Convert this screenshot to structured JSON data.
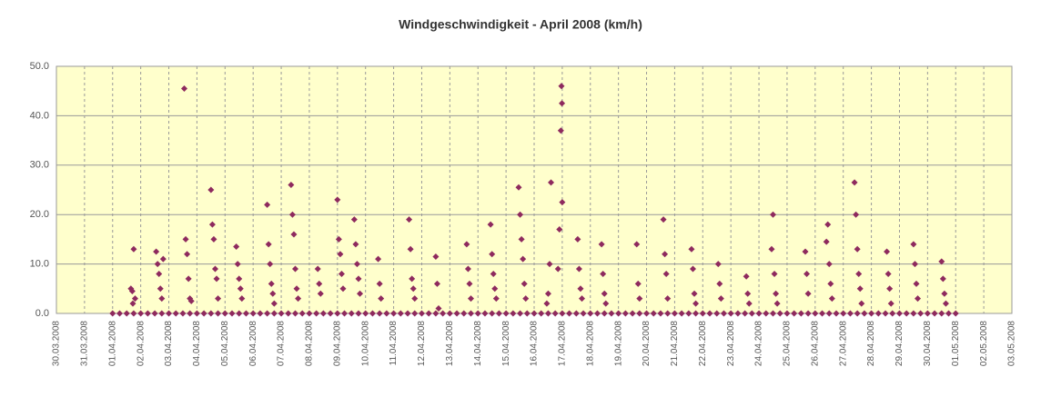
{
  "chart_data": {
    "type": "scatter",
    "title": "Windgeschwindigkeit - April 2008 (km/h)",
    "color": "#8e2a5e",
    "background": "#ffffcc",
    "grid": true,
    "xlim": [
      0,
      34
    ],
    "xticks": [
      {
        "value": 0,
        "label": "30.03.2008"
      },
      {
        "value": 1,
        "label": "31.03.2008"
      },
      {
        "value": 2,
        "label": "01.04.2008"
      },
      {
        "value": 3,
        "label": "02.04.2008"
      },
      {
        "value": 4,
        "label": "03.04.2008"
      },
      {
        "value": 5,
        "label": "04.04.2008"
      },
      {
        "value": 6,
        "label": "05.04.2008"
      },
      {
        "value": 7,
        "label": "06.04.2008"
      },
      {
        "value": 8,
        "label": "07.04.2008"
      },
      {
        "value": 9,
        "label": "08.04.2008"
      },
      {
        "value": 10,
        "label": "09.04.2008"
      },
      {
        "value": 11,
        "label": "10.04.2008"
      },
      {
        "value": 12,
        "label": "11.04.2008"
      },
      {
        "value": 13,
        "label": "12.04.2008"
      },
      {
        "value": 14,
        "label": "13.04.2008"
      },
      {
        "value": 15,
        "label": "14.04.2008"
      },
      {
        "value": 16,
        "label": "15.04.2008"
      },
      {
        "value": 17,
        "label": "16.04.2008"
      },
      {
        "value": 18,
        "label": "17.04.2008"
      },
      {
        "value": 19,
        "label": "18.04.2008"
      },
      {
        "value": 20,
        "label": "19.04.2008"
      },
      {
        "value": 21,
        "label": "20.04.2008"
      },
      {
        "value": 22,
        "label": "21.04.2008"
      },
      {
        "value": 23,
        "label": "22.04.2008"
      },
      {
        "value": 24,
        "label": "23.04.2008"
      },
      {
        "value": 25,
        "label": "24.04.2008"
      },
      {
        "value": 26,
        "label": "25.04.2008"
      },
      {
        "value": 27,
        "label": "26.04.2008"
      },
      {
        "value": 28,
        "label": "27.04.2008"
      },
      {
        "value": 29,
        "label": "28.04.2008"
      },
      {
        "value": 30,
        "label": "29.04.2008"
      },
      {
        "value": 31,
        "label": "30.04.2008"
      },
      {
        "value": 32,
        "label": "01.05.2008"
      },
      {
        "value": 33,
        "label": "02.05.2008"
      },
      {
        "value": 34,
        "label": "03.05.2008"
      }
    ],
    "ylim": [
      0,
      50
    ],
    "yticks": [
      {
        "value": 0,
        "label": "0.0"
      },
      {
        "value": 10,
        "label": "10.0"
      },
      {
        "value": 20,
        "label": "20.0"
      },
      {
        "value": 30,
        "label": "30.0"
      },
      {
        "value": 40,
        "label": "40.0"
      },
      {
        "value": 50,
        "label": "50.0"
      }
    ],
    "x": [
      2.65,
      2.7,
      2.75,
      2.8,
      2.72,
      3.55,
      3.6,
      3.65,
      3.7,
      3.75,
      3.8,
      4.55,
      4.6,
      4.65,
      4.7,
      4.75,
      4.8,
      5.5,
      5.55,
      5.6,
      5.65,
      5.7,
      5.75,
      6.4,
      6.45,
      6.5,
      6.55,
      6.6,
      7.5,
      7.55,
      7.6,
      7.65,
      7.7,
      7.75,
      8.35,
      8.4,
      8.45,
      8.5,
      8.55,
      8.6,
      9.3,
      9.35,
      9.4,
      10.0,
      10.05,
      10.1,
      10.15,
      10.2,
      10.6,
      10.65,
      10.7,
      10.75,
      10.8,
      11.45,
      11.5,
      11.55,
      12.55,
      12.6,
      12.65,
      12.7,
      12.75,
      13.5,
      13.55,
      13.6,
      14.6,
      14.65,
      14.7,
      14.75,
      15.45,
      15.5,
      15.55,
      15.6,
      15.65,
      16.45,
      16.5,
      16.55,
      16.6,
      16.65,
      16.7,
      17.6,
      17.55,
      17.5,
      17.45,
      17.97,
      17.99,
      17.95,
      18.0,
      17.9,
      17.85,
      18.55,
      18.6,
      18.65,
      18.7,
      19.4,
      19.45,
      19.5,
      19.55,
      20.65,
      20.7,
      20.75,
      21.6,
      21.65,
      21.7,
      21.75,
      22.6,
      22.65,
      22.7,
      22.75,
      23.55,
      23.6,
      23.65,
      24.55,
      24.6,
      24.65,
      25.5,
      25.45,
      25.55,
      25.6,
      25.65,
      26.65,
      26.7,
      26.75,
      27.45,
      27.4,
      27.5,
      27.55,
      27.6,
      28.4,
      28.45,
      28.5,
      28.55,
      28.6,
      28.65,
      29.55,
      29.6,
      29.65,
      29.7,
      30.5,
      30.55,
      30.6,
      30.65,
      31.5,
      31.55,
      31.6,
      31.65,
      2,
      2.25,
      2.5,
      2.75,
      3,
      3.25,
      3.5,
      3.75,
      4,
      4.25,
      4.5,
      4.75,
      5,
      5.25,
      5.5,
      5.75,
      6,
      6.25,
      6.5,
      6.75,
      7,
      7.25,
      7.5,
      7.75,
      8,
      8.25,
      8.5,
      8.75,
      9,
      9.25,
      9.5,
      9.75,
      10,
      10.25,
      10.5,
      10.75,
      11,
      11.25,
      11.5,
      11.75,
      12,
      12.25,
      12.5,
      12.75,
      13,
      13.25,
      13.5,
      13.75,
      14,
      14.25,
      14.5,
      14.75,
      15,
      15.25,
      15.5,
      15.75,
      16,
      16.25,
      16.5,
      16.75,
      17,
      17.25,
      17.5,
      17.75,
      18,
      18.25,
      18.5,
      18.75,
      19,
      19.25,
      19.5,
      19.75,
      20,
      20.25,
      20.5,
      20.75,
      21,
      21.25,
      21.5,
      21.75,
      22,
      22.25,
      22.5,
      22.75,
      23,
      23.25,
      23.5,
      23.75,
      24,
      24.25,
      24.5,
      24.75,
      25,
      25.25,
      25.5,
      25.75,
      26,
      26.25,
      26.5,
      26.75,
      27,
      27.25,
      27.5,
      27.75,
      28,
      28.25,
      28.5,
      28.75,
      29,
      29.25,
      29.5,
      29.75,
      30,
      30.25,
      30.5,
      30.75,
      31,
      31.25,
      31.5,
      31.75,
      32
    ],
    "values": [
      5,
      4.5,
      13,
      3,
      2,
      12.5,
      10,
      8,
      5,
      3,
      11,
      45.5,
      15,
      12,
      7,
      3,
      2.5,
      25,
      18,
      15,
      9,
      7,
      3,
      13.5,
      10,
      7,
      5,
      3,
      22,
      14,
      10,
      6,
      4,
      2,
      26,
      20,
      16,
      9,
      5,
      3,
      9,
      6,
      4,
      23,
      15,
      12,
      8,
      5,
      19,
      14,
      10,
      7,
      4,
      11,
      6,
      3,
      19,
      13,
      7,
      5,
      3,
      11.5,
      6,
      1,
      14,
      9,
      6,
      3,
      18,
      12,
      8,
      5,
      3,
      25.5,
      20,
      15,
      11,
      6,
      3,
      26.5,
      10,
      4,
      2,
      46,
      42.5,
      37,
      22.5,
      17,
      9,
      15,
      9,
      5,
      3,
      14,
      8,
      4,
      2,
      14,
      6,
      3,
      19,
      12,
      8,
      3,
      13,
      9,
      4,
      2,
      10,
      6,
      3,
      7.5,
      4,
      2,
      20,
      13,
      8,
      4,
      2,
      12.5,
      8,
      4,
      18,
      14.5,
      10,
      6,
      3,
      26.5,
      20,
      13,
      8,
      5,
      2,
      12.5,
      8,
      5,
      2,
      14,
      10,
      6,
      3,
      10.5,
      7,
      4,
      2,
      0,
      0,
      0,
      0,
      0,
      0,
      0,
      0,
      0,
      0,
      0,
      0,
      0,
      0,
      0,
      0,
      0,
      0,
      0,
      0,
      0,
      0,
      0,
      0,
      0,
      0,
      0,
      0,
      0,
      0,
      0,
      0,
      0,
      0,
      0,
      0,
      0,
      0,
      0,
      0,
      0,
      0,
      0,
      0,
      0,
      0,
      0,
      0,
      0,
      0,
      0,
      0,
      0,
      0,
      0,
      0,
      0,
      0,
      0,
      0,
      0,
      0,
      0,
      0,
      0,
      0,
      0,
      0,
      0,
      0,
      0,
      0,
      0,
      0,
      0,
      0,
      0,
      0,
      0,
      0,
      0,
      0,
      0,
      0,
      0,
      0,
      0,
      0,
      0,
      0,
      0,
      0,
      0,
      0,
      0,
      0,
      0,
      0,
      0,
      0,
      0,
      0,
      0,
      0,
      0,
      0,
      0,
      0,
      0,
      0,
      0,
      0,
      0,
      0,
      0,
      0,
      0,
      0,
      0,
      0,
      0
    ]
  }
}
